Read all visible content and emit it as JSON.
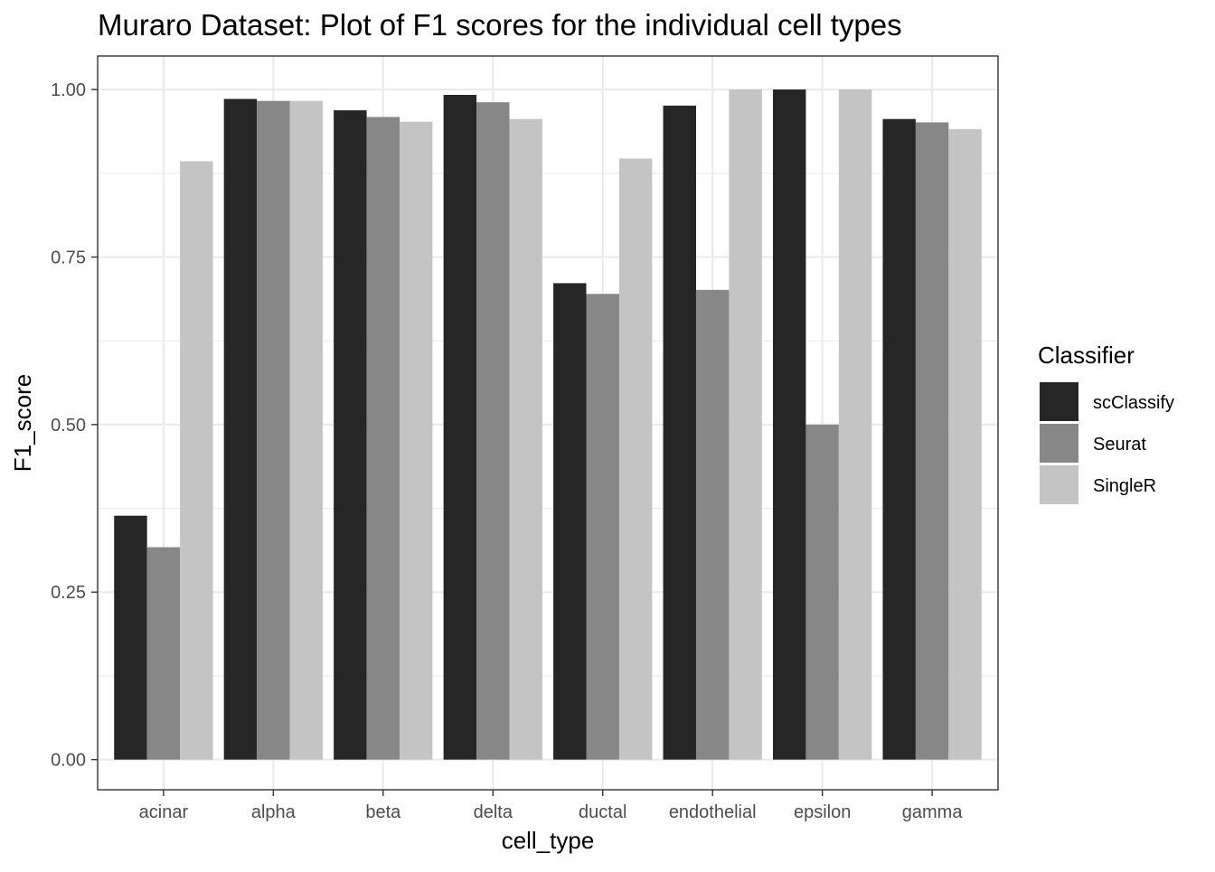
{
  "chart_data": {
    "type": "bar",
    "title": "Muraro Dataset: Plot of F1 scores for the individual cell types",
    "xlabel": "cell_type",
    "ylabel": "F1_score",
    "categories": [
      "acinar",
      "alpha",
      "beta",
      "delta",
      "ductal",
      "endothelial",
      "epsilon",
      "gamma"
    ],
    "series": [
      {
        "name": "scClassify",
        "color": "#262626",
        "values": [
          0.364,
          0.986,
          0.969,
          0.992,
          0.711,
          0.976,
          1.0,
          0.956
        ]
      },
      {
        "name": "Seurat",
        "color": "#878787",
        "values": [
          0.317,
          0.983,
          0.959,
          0.981,
          0.695,
          0.701,
          0.5,
          0.951
        ]
      },
      {
        "name": "SingleR",
        "color": "#c4c4c4",
        "values": [
          0.893,
          0.983,
          0.952,
          0.956,
          0.897,
          1.0,
          1.0,
          0.941
        ]
      }
    ],
    "ylim": [
      -0.045,
      1.05
    ],
    "yticks": [
      0.0,
      0.25,
      0.5,
      0.75,
      1.0
    ],
    "ytick_labels": [
      "0.00",
      "0.25",
      "0.50",
      "0.75",
      "1.00"
    ],
    "grid": true,
    "legend": {
      "title": "Classifier",
      "position": "right"
    }
  }
}
